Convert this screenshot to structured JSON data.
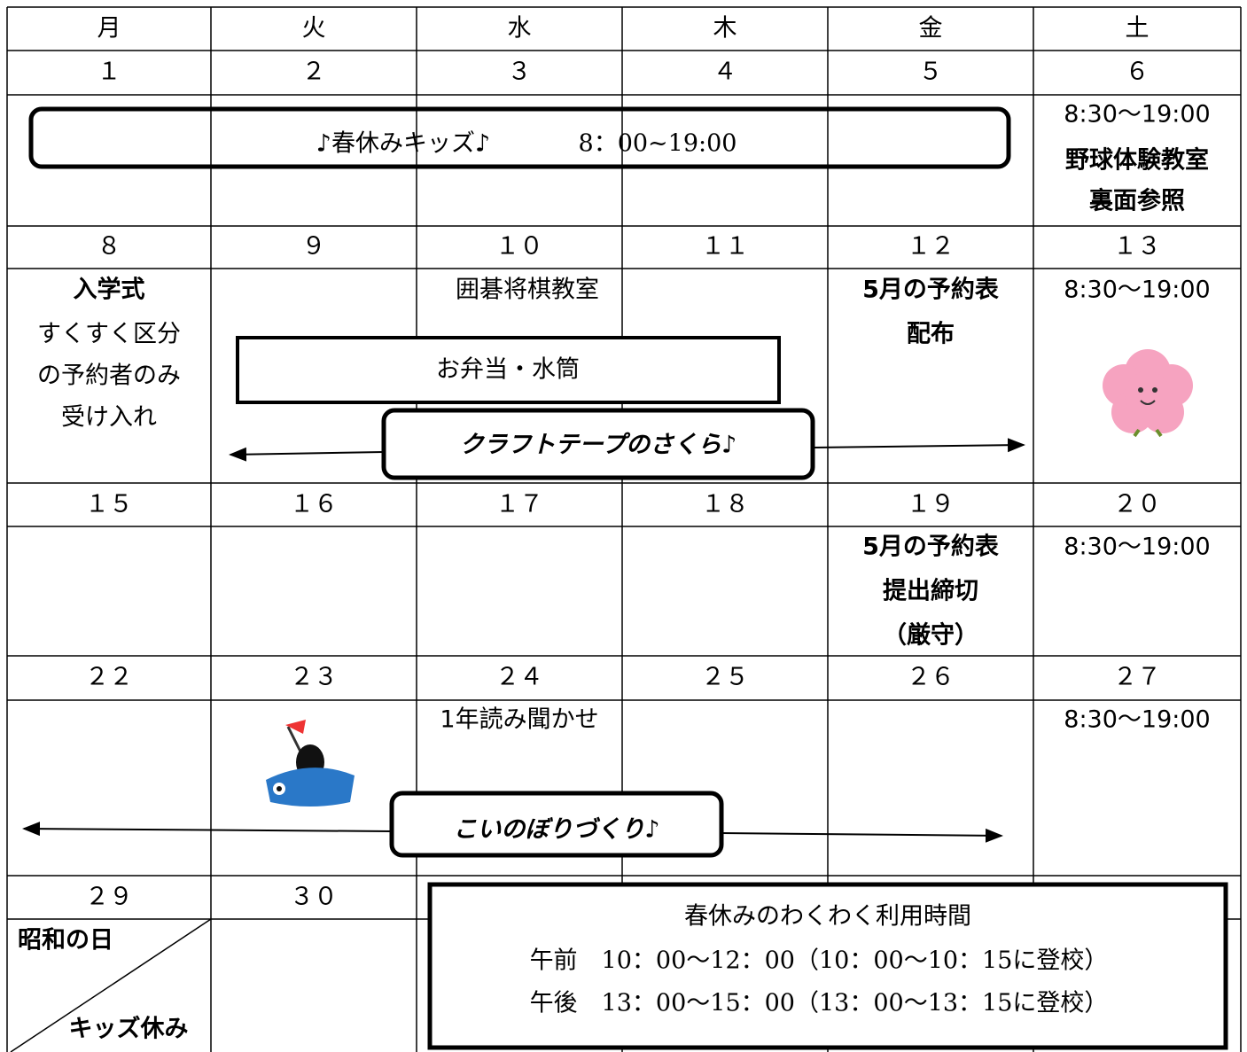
{
  "header": {
    "days": [
      "月",
      "火",
      "水",
      "木",
      "金",
      "土"
    ]
  },
  "weeks": [
    {
      "dates": [
        "１",
        "２",
        "３",
        "４",
        "５",
        "６"
      ]
    },
    {
      "dates": [
        "８",
        "９",
        "１０",
        "１１",
        "１２",
        "１３"
      ]
    },
    {
      "dates": [
        "１５",
        "１６",
        "１７",
        "１８",
        "１９",
        "２０"
      ]
    },
    {
      "dates": [
        "２２",
        "２３",
        "２４",
        "２５",
        "２６",
        "２７"
      ]
    },
    {
      "dates": [
        "２９",
        "３０"
      ]
    }
  ],
  "events": {
    "spring_kids": {
      "title": "♪春休みキッズ♪",
      "time": "8：00~19:00"
    },
    "saturday_hours": "8:30～19:00",
    "baseball": [
      "野球体験教室",
      "裏面参照"
    ],
    "entrance": {
      "title": "入学式",
      "lines": [
        "すくすく区分",
        "の予約者のみ",
        "受け入れ"
      ]
    },
    "go_shogi": "囲碁将棋教室",
    "bento": "お弁当・水筒",
    "craft": "クラフトテープのさくら♪",
    "may_distribute": [
      "5月の予約表",
      "配布"
    ],
    "may_deadline": [
      "5月の予約表",
      "提出締切",
      "（厳守）"
    ],
    "reading": "1年読み聞かせ",
    "koinobori": "こいのぼりづくり♪",
    "showa": [
      "昭和の日",
      "キッズ休み"
    ]
  },
  "notice": {
    "title": "春休みのわくわく利用時間",
    "lines": [
      "午前　10：00～12：00（10：00～10：15に登校）",
      "午後　13：00～15：00（13：00～13：15に登校）"
    ]
  }
}
